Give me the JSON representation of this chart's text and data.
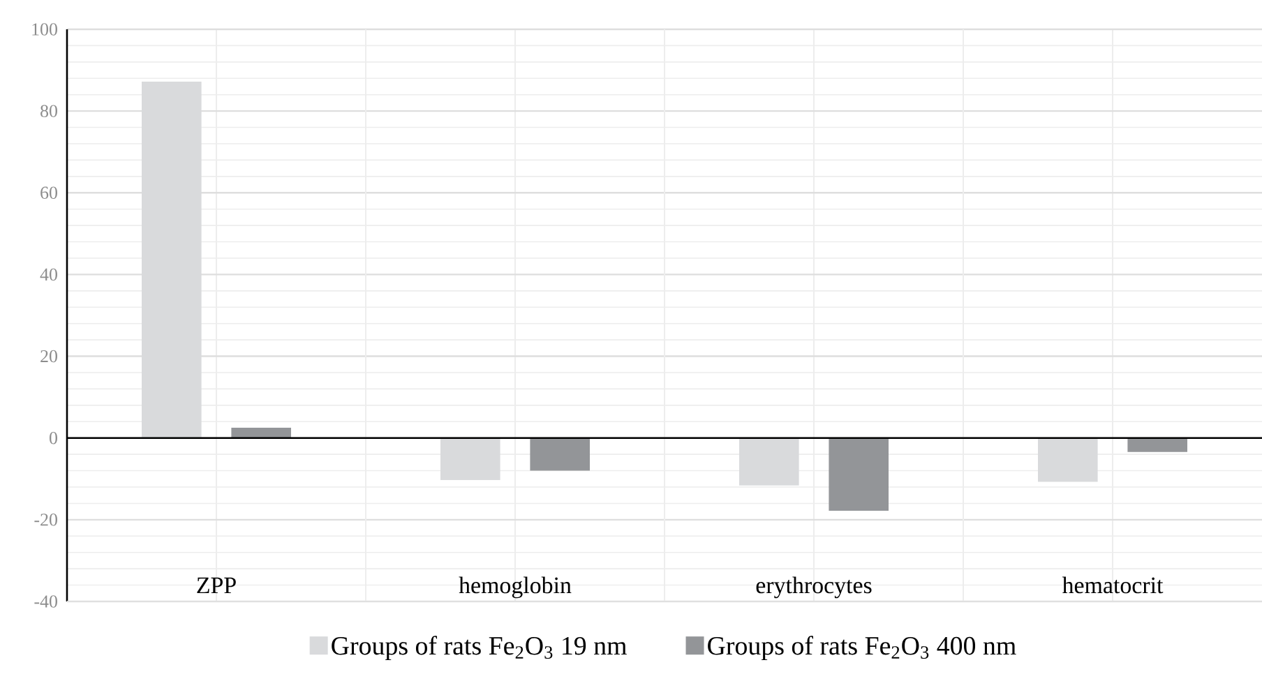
{
  "chart_data": {
    "type": "bar",
    "categories": [
      "ZPP",
      "hemoglobin",
      "erythrocytes",
      "hematocrit"
    ],
    "series": [
      {
        "name": "Groups of rats Fe$_{2}$O$_{3}$ 19 nm",
        "color": "#d9dadc",
        "values": [
          87.2,
          -10.3,
          -11.6,
          -10.7
        ]
      },
      {
        "name": "Groups of rats Fe$_{2}$O$_{3}$ 400 nm",
        "color": "#939598",
        "values": [
          2.5,
          -8.0,
          -17.8,
          -3.4
        ]
      }
    ],
    "ylim": [
      -40,
      100
    ],
    "yticks": [
      -40,
      -20,
      0,
      20,
      40,
      60,
      80,
      100
    ],
    "grid": true,
    "legend": "bottom"
  }
}
